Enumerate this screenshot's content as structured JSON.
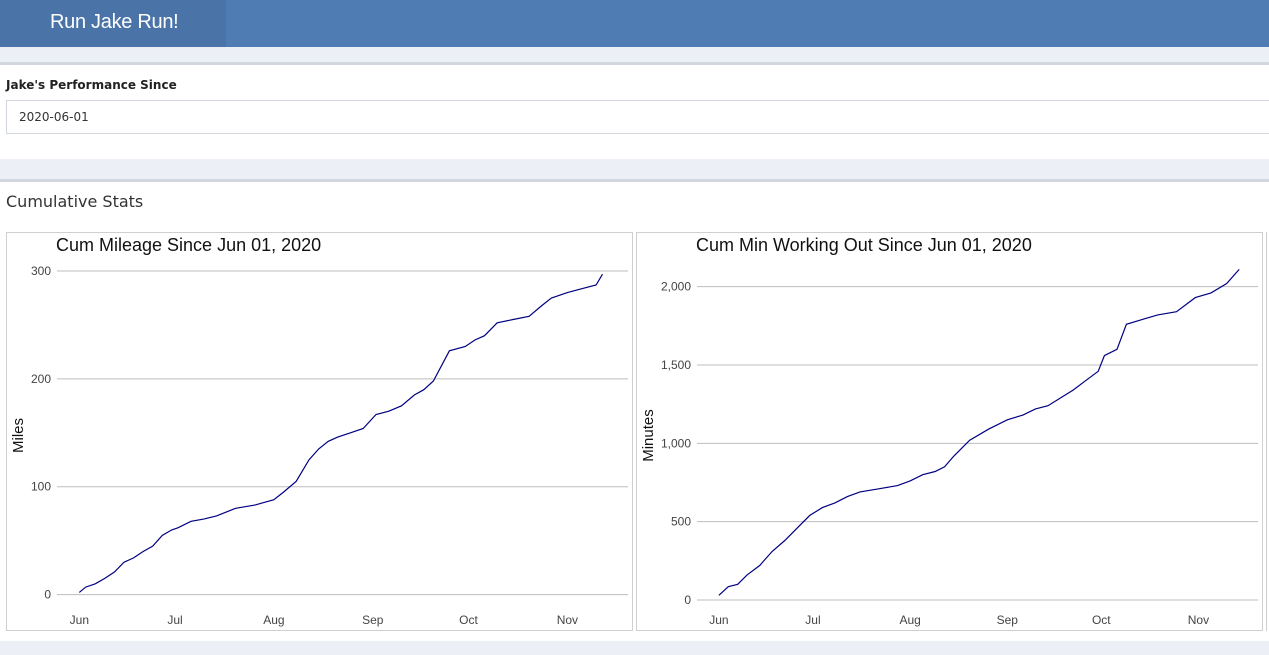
{
  "header": {
    "brand": "Run Jake Run!"
  },
  "filter": {
    "label": "Jake's Performance Since",
    "value": "2020-06-01"
  },
  "stats": {
    "title": "Cumulative Stats"
  },
  "accent_color": "#4f7db3",
  "line_color": "#000080",
  "chart_data": [
    {
      "type": "line",
      "title": "Cum Mileage Since Jun 01, 2020",
      "xlabel": "",
      "ylabel": "Miles",
      "x_ticks": [
        "Jun",
        "Jul",
        "Aug",
        "Sep",
        "Oct",
        "Nov"
      ],
      "y_ticks": [
        "0",
        "100",
        "200",
        "300"
      ],
      "xlim": [
        "2020-05-25",
        "2020-11-20"
      ],
      "ylim": [
        -5,
        300
      ],
      "grid": "horizontal",
      "series": [
        {
          "x": [
            "2020-06-01",
            "2020-06-03",
            "2020-06-06",
            "2020-06-09",
            "2020-06-12",
            "2020-06-15",
            "2020-06-18",
            "2020-06-21",
            "2020-06-24",
            "2020-06-27",
            "2020-06-30",
            "2020-07-02",
            "2020-07-06",
            "2020-07-10",
            "2020-07-14",
            "2020-07-20",
            "2020-07-26",
            "2020-08-01",
            "2020-08-04",
            "2020-08-08",
            "2020-08-12",
            "2020-08-15",
            "2020-08-18",
            "2020-08-21",
            "2020-08-25",
            "2020-08-29",
            "2020-09-02",
            "2020-09-06",
            "2020-09-10",
            "2020-09-14",
            "2020-09-17",
            "2020-09-20",
            "2020-09-25",
            "2020-09-30",
            "2020-10-03",
            "2020-10-06",
            "2020-10-10",
            "2020-10-15",
            "2020-10-20",
            "2020-10-24",
            "2020-10-27",
            "2020-11-01",
            "2020-11-06",
            "2020-11-10",
            "2020-11-12"
          ],
          "y": [
            2,
            7,
            10,
            15,
            21,
            30,
            34,
            40,
            45,
            55,
            60,
            62,
            68,
            70,
            73,
            80,
            83,
            88,
            95,
            105,
            125,
            135,
            142,
            146,
            150,
            154,
            167,
            170,
            175,
            185,
            190,
            198,
            226,
            230,
            236,
            240,
            252,
            255,
            258,
            268,
            275,
            280,
            284,
            287,
            297
          ]
        }
      ]
    },
    {
      "type": "line",
      "title": "Cum Min Working Out Since Jun 01, 2020",
      "xlabel": "",
      "ylabel": "Minutes",
      "x_ticks": [
        "Jun",
        "Jul",
        "Aug",
        "Sep",
        "Oct",
        "Nov"
      ],
      "y_ticks": [
        "0",
        "500",
        "1,000",
        "1,500",
        "2,000"
      ],
      "xlim": [
        "2020-05-25",
        "2020-11-20"
      ],
      "ylim": [
        0,
        2100
      ],
      "grid": "horizontal",
      "series": [
        {
          "x": [
            "2020-06-01",
            "2020-06-04",
            "2020-06-07",
            "2020-06-10",
            "2020-06-14",
            "2020-06-18",
            "2020-06-22",
            "2020-06-26",
            "2020-06-30",
            "2020-07-04",
            "2020-07-08",
            "2020-07-12",
            "2020-07-16",
            "2020-07-22",
            "2020-07-28",
            "2020-08-01",
            "2020-08-05",
            "2020-08-09",
            "2020-08-12",
            "2020-08-15",
            "2020-08-20",
            "2020-08-26",
            "2020-09-01",
            "2020-09-06",
            "2020-09-10",
            "2020-09-14",
            "2020-09-18",
            "2020-09-22",
            "2020-09-26",
            "2020-09-30",
            "2020-10-02",
            "2020-10-06",
            "2020-10-09",
            "2020-10-14",
            "2020-10-19",
            "2020-10-25",
            "2020-10-31",
            "2020-11-05",
            "2020-11-10",
            "2020-11-14"
          ],
          "y": [
            30,
            85,
            100,
            160,
            220,
            310,
            380,
            460,
            540,
            590,
            620,
            660,
            690,
            710,
            730,
            760,
            800,
            820,
            850,
            920,
            1020,
            1090,
            1150,
            1180,
            1220,
            1240,
            1290,
            1340,
            1400,
            1460,
            1560,
            1600,
            1760,
            1790,
            1820,
            1840,
            1930,
            1960,
            2020,
            2110
          ]
        }
      ]
    }
  ]
}
